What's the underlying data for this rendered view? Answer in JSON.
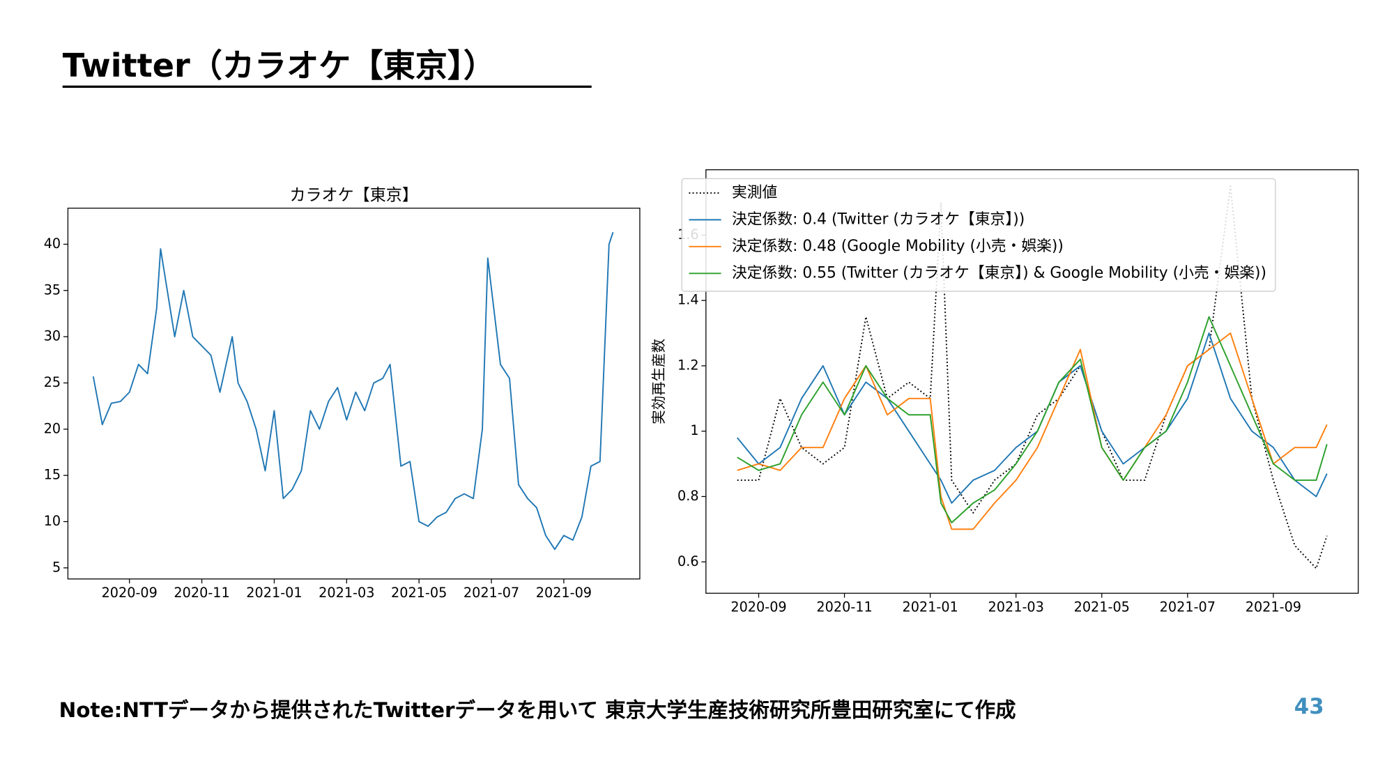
{
  "slide": {
    "title": "Twitter（カラオケ【東京】）",
    "note": "Note:NTTデータから提供されたTwitterデータを用いて 東京大学生産技術研究所豊田研究室にて作成",
    "page": "43"
  },
  "chart_data": [
    {
      "type": "line",
      "title": "カラオケ【東京】",
      "xlim": [
        7.3,
        23.1
      ],
      "ylim": [
        3.8,
        43.9
      ],
      "xticks": [
        {
          "value": 9,
          "label": "2020-09"
        },
        {
          "value": 11,
          "label": "2020-11"
        },
        {
          "value": 13,
          "label": "2021-01"
        },
        {
          "value": 15,
          "label": "2021-03"
        },
        {
          "value": 17,
          "label": "2021-05"
        },
        {
          "value": 19,
          "label": "2021-07"
        },
        {
          "value": 21,
          "label": "2021-09"
        }
      ],
      "yticks": [
        5,
        10,
        15,
        20,
        25,
        30,
        35,
        40
      ],
      "x": [
        8.0,
        8.25,
        8.5,
        8.75,
        9.0,
        9.25,
        9.5,
        9.75,
        9.86,
        10.25,
        10.5,
        10.75,
        11.0,
        11.25,
        11.5,
        11.84,
        12.0,
        12.25,
        12.5,
        12.75,
        13.0,
        13.25,
        13.5,
        13.75,
        14.0,
        14.25,
        14.5,
        14.75,
        15.0,
        15.25,
        15.5,
        15.75,
        16.0,
        16.2,
        16.5,
        16.75,
        17.0,
        17.25,
        17.5,
        17.75,
        18.0,
        18.25,
        18.5,
        18.75,
        18.9,
        19.25,
        19.5,
        19.75,
        20.0,
        20.25,
        20.5,
        20.75,
        21.0,
        21.25,
        21.5,
        21.75,
        22.0,
        22.25,
        22.36
      ],
      "series": [
        {
          "color": "#1f77b4",
          "values": [
            25.7,
            20.5,
            22.8,
            23,
            24,
            27,
            26,
            33,
            39.5,
            30,
            35,
            30,
            29,
            28,
            24,
            30,
            25,
            23,
            20,
            15.5,
            22,
            12.5,
            13.5,
            15.5,
            22,
            20,
            23,
            24.5,
            21,
            24,
            22,
            25,
            25.5,
            27,
            16,
            16.5,
            10,
            9.5,
            10.5,
            11,
            12.5,
            13,
            12.5,
            20,
            38.5,
            27,
            25.5,
            14,
            12.5,
            11.5,
            8.5,
            7,
            8.5,
            8,
            10.5,
            16,
            16.5,
            40,
            41.3
          ]
        }
      ]
    },
    {
      "type": "line",
      "ylabel": "実効再生産数",
      "xlim": [
        7.77,
        22.98
      ],
      "ylim": [
        0.504,
        1.8
      ],
      "xticks": [
        {
          "value": 9,
          "label": "2020-09"
        },
        {
          "value": 11,
          "label": "2020-11"
        },
        {
          "value": 13,
          "label": "2021-01"
        },
        {
          "value": 15,
          "label": "2021-03"
        },
        {
          "value": 17,
          "label": "2021-05"
        },
        {
          "value": 19,
          "label": "2021-07"
        },
        {
          "value": 21,
          "label": "2021-09"
        }
      ],
      "yticks": [
        0.6,
        0.8,
        1.0,
        1.2,
        1.4,
        1.6
      ],
      "legend": "upper left",
      "x": [
        8.5,
        9,
        9.5,
        10,
        10.5,
        11,
        11.5,
        12,
        12.5,
        13,
        13.25,
        13.5,
        14,
        14.5,
        15,
        15.5,
        16,
        16.5,
        17,
        17.5,
        18,
        18.5,
        19,
        19.5,
        20,
        20.5,
        21,
        21.5,
        22,
        22.25
      ],
      "series": [
        {
          "name": "実測値",
          "color": "#000000",
          "linestyle": "dotted",
          "values": [
            0.85,
            0.85,
            1.1,
            0.95,
            0.9,
            0.95,
            1.35,
            1.1,
            1.15,
            1.1,
            1.7,
            0.85,
            0.75,
            0.85,
            0.9,
            1.05,
            1.1,
            1.2,
            1.0,
            0.85,
            0.85,
            1.05,
            1.2,
            1.25,
            1.75,
            1.1,
            0.85,
            0.65,
            0.58,
            0.68
          ]
        },
        {
          "name": "決定係数: 0.4 (Twitter (カラオケ【東京】))",
          "color": "#1f77b4",
          "values": [
            0.98,
            0.9,
            0.95,
            1.1,
            1.2,
            1.05,
            1.15,
            1.1,
            1.0,
            0.9,
            0.85,
            0.78,
            0.85,
            0.88,
            0.95,
            1.0,
            1.15,
            1.2,
            1.0,
            0.9,
            0.95,
            1.0,
            1.1,
            1.3,
            1.1,
            1.0,
            0.95,
            0.85,
            0.8,
            0.87
          ]
        },
        {
          "name": "決定係数: 0.48 (Google Mobility (小売・娯楽))",
          "color": "#ff7f0e",
          "values": [
            0.88,
            0.9,
            0.88,
            0.95,
            0.95,
            1.1,
            1.2,
            1.05,
            1.1,
            1.1,
            0.8,
            0.7,
            0.7,
            0.78,
            0.85,
            0.95,
            1.1,
            1.25,
            0.95,
            0.85,
            0.95,
            1.05,
            1.2,
            1.25,
            1.3,
            1.1,
            0.9,
            0.95,
            0.95,
            1.02
          ]
        },
        {
          "name": "決定係数: 0.55 (Twitter (カラオケ【東京】) & Google Mobility (小売・娯楽))",
          "color": "#2ca02c",
          "values": [
            0.92,
            0.88,
            0.9,
            1.05,
            1.15,
            1.05,
            1.2,
            1.1,
            1.05,
            1.05,
            0.78,
            0.72,
            0.78,
            0.82,
            0.9,
            1.0,
            1.15,
            1.22,
            0.95,
            0.85,
            0.95,
            1.0,
            1.15,
            1.35,
            1.2,
            1.05,
            0.9,
            0.85,
            0.85,
            0.96
          ]
        }
      ]
    }
  ]
}
